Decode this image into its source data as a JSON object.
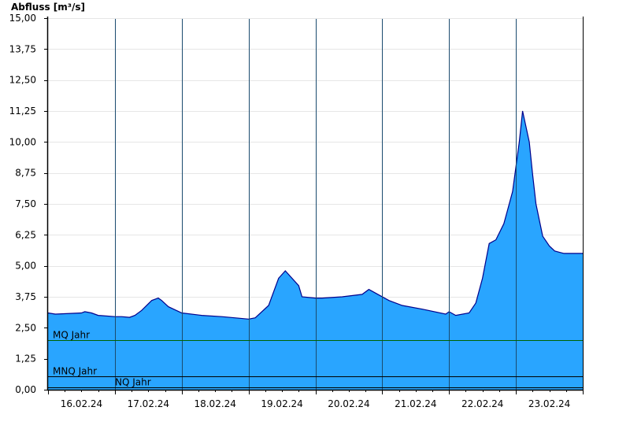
{
  "chart_data": {
    "type": "area",
    "title": "",
    "ylabel": "Abfluss [m³/s]",
    "xlabel": "",
    "ylim": [
      0,
      15
    ],
    "grid": true,
    "colors": {
      "fill": "#29a5ff",
      "line": "#00008b",
      "ref": "#006400",
      "vgrid": "#1a4a6e"
    },
    "y_ticks": [
      "15,00",
      "13,75",
      "12,50",
      "11,25",
      "10,00",
      "8,75",
      "7,50",
      "6,25",
      "5,00",
      "3,75",
      "2,50",
      "1,25",
      "0,00"
    ],
    "y_tick_values": [
      15,
      13.75,
      12.5,
      11.25,
      10,
      8.75,
      7.5,
      6.25,
      5,
      3.75,
      2.5,
      1.25,
      0
    ],
    "x_ticks": [
      "16.02.24",
      "17.02.24",
      "18.02.24",
      "19.02.24",
      "20.02.24",
      "21.02.24",
      "22.02.24",
      "23.02.24"
    ],
    "xlim": [
      0,
      8
    ],
    "day_boundaries": [
      1,
      2,
      3,
      4,
      5,
      6,
      7
    ],
    "reference_lines": [
      {
        "name": "MQ Jahr",
        "value": 2.0
      },
      {
        "name": "MNQ Jahr",
        "value": 0.55
      },
      {
        "name": "NQ Jahr",
        "value": 0.1
      }
    ],
    "series": [
      {
        "x": [
          0.0,
          0.11,
          0.5,
          0.55,
          0.65,
          0.75,
          1.0,
          1.1,
          1.22,
          1.3,
          1.4,
          1.55,
          1.65,
          1.7,
          1.8,
          2.0,
          2.3,
          2.6,
          3.0,
          3.1,
          3.3,
          3.45,
          3.55,
          3.75,
          3.8,
          4.0,
          4.1,
          4.4,
          4.7,
          4.8,
          4.9,
          5.1,
          5.3,
          5.6,
          5.95,
          6.0,
          6.1,
          6.3,
          6.4,
          6.5,
          6.6,
          6.7,
          6.82,
          6.87,
          6.95,
          7.05,
          7.1,
          7.2,
          7.25,
          7.3,
          7.4,
          7.5,
          7.58,
          7.65,
          7.72,
          7.8,
          7.9,
          8.0
        ],
        "values": [
          3.1,
          3.05,
          3.1,
          3.15,
          3.1,
          3.0,
          2.95,
          2.95,
          2.92,
          3.0,
          3.2,
          3.6,
          3.7,
          3.6,
          3.35,
          3.1,
          3.0,
          2.95,
          2.85,
          2.9,
          3.4,
          4.5,
          4.8,
          4.2,
          3.75,
          3.7,
          3.7,
          3.75,
          3.85,
          4.05,
          3.9,
          3.6,
          3.4,
          3.25,
          3.05,
          3.15,
          3.0,
          3.1,
          3.5,
          4.5,
          5.9,
          6.05,
          6.7,
          7.2,
          8.0,
          10.0,
          11.25,
          10.0,
          8.7,
          7.5,
          6.2,
          5.8,
          5.6,
          5.55,
          5.5,
          5.5,
          5.5,
          5.5
        ]
      }
    ]
  }
}
